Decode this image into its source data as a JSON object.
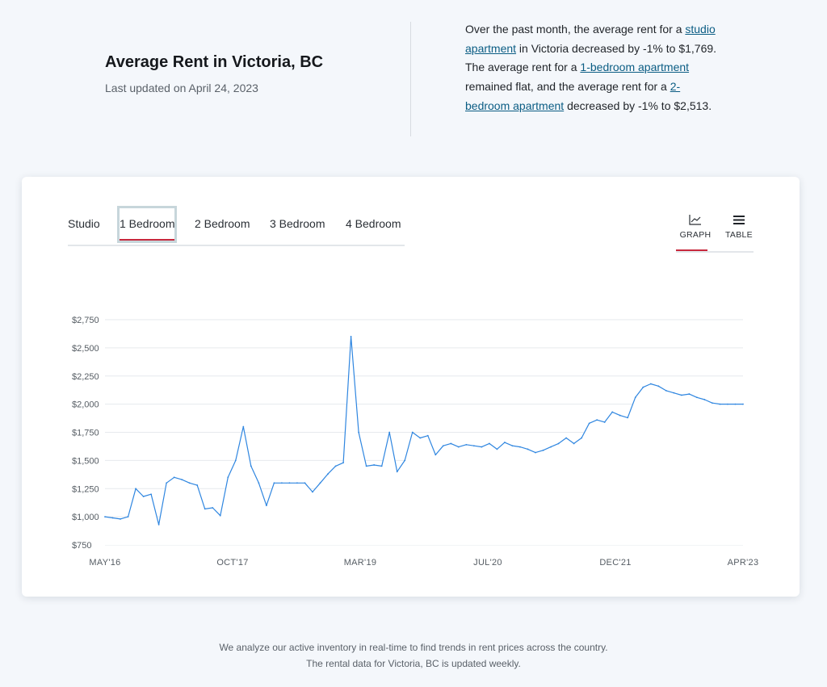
{
  "header": {
    "title": "Average Rent in Victoria, BC",
    "updated": "Last updated on April 24, 2023"
  },
  "summary": {
    "t1": "Over the past month, the average rent for a ",
    "link1": "studio apartment",
    "t2": " in Victoria decreased by -1% to $1,769. The average rent for a ",
    "link2": "1-bedroom apartment",
    "t3": " remained flat, and the average rent for a ",
    "link3": "2-bedroom apartment",
    "t4": " decreased by -1% to $2,513."
  },
  "tabs": [
    "Studio",
    "1 Bedroom",
    "2 Bedroom",
    "3 Bedroom",
    "4 Bedroom"
  ],
  "active_tab": "1 Bedroom",
  "views": {
    "graph": "GRAPH",
    "table": "TABLE",
    "active": "graph"
  },
  "colors": {
    "line": "#2f86e0",
    "accent": "#c8283d",
    "grid": "#e6e9ed"
  },
  "footer": "We analyze our active inventory in real-time to find trends in rent prices across the country. The rental data for Victoria, BC is updated weekly.",
  "chart_data": {
    "type": "area",
    "title": "",
    "xlabel": "",
    "ylabel": "",
    "x_tick_labels": [
      "MAY'16",
      "OCT'17",
      "MAR'19",
      "JUL'20",
      "DEC'21",
      "APR'23"
    ],
    "y_tick_labels": [
      "$750",
      "$1,000",
      "$1,250",
      "$1,500",
      "$1,750",
      "$2,000",
      "$2,250",
      "$2,500",
      "$2,750"
    ],
    "ylim": [
      750,
      2750
    ],
    "xlim": [
      "2016-05",
      "2023-04"
    ],
    "grid": "horizontal",
    "series": [
      {
        "values": [
          [
            "2016-05",
            1000
          ],
          [
            "2016-06",
            990
          ],
          [
            "2016-07",
            980
          ],
          [
            "2016-08",
            1000
          ],
          [
            "2016-09",
            1250
          ],
          [
            "2016-10",
            1180
          ],
          [
            "2016-11",
            1200
          ],
          [
            "2016-12",
            930
          ],
          [
            "2017-01",
            1300
          ],
          [
            "2017-02",
            1350
          ],
          [
            "2017-03",
            1330
          ],
          [
            "2017-04",
            1300
          ],
          [
            "2017-05",
            1280
          ],
          [
            "2017-06",
            1070
          ],
          [
            "2017-07",
            1080
          ],
          [
            "2017-08",
            1010
          ],
          [
            "2017-09",
            1350
          ],
          [
            "2017-10",
            1500
          ],
          [
            "2017-11",
            1800
          ],
          [
            "2017-12",
            1450
          ],
          [
            "2018-01",
            1300
          ],
          [
            "2018-02",
            1100
          ],
          [
            "2018-03",
            1300
          ],
          [
            "2018-04",
            1300
          ],
          [
            "2018-05",
            1300
          ],
          [
            "2018-06",
            1300
          ],
          [
            "2018-07",
            1300
          ],
          [
            "2018-08",
            1220
          ],
          [
            "2018-09",
            1300
          ],
          [
            "2018-10",
            1380
          ],
          [
            "2018-11",
            1450
          ],
          [
            "2018-12",
            1480
          ],
          [
            "2019-01",
            2600
          ],
          [
            "2019-02",
            1750
          ],
          [
            "2019-03",
            1450
          ],
          [
            "2019-04",
            1460
          ],
          [
            "2019-05",
            1450
          ],
          [
            "2019-06",
            1750
          ],
          [
            "2019-07",
            1400
          ],
          [
            "2019-08",
            1500
          ],
          [
            "2019-09",
            1750
          ],
          [
            "2019-10",
            1700
          ],
          [
            "2019-11",
            1720
          ],
          [
            "2019-12",
            1550
          ],
          [
            "2020-01",
            1630
          ],
          [
            "2020-02",
            1650
          ],
          [
            "2020-03",
            1620
          ],
          [
            "2020-04",
            1640
          ],
          [
            "2020-05",
            1630
          ],
          [
            "2020-06",
            1620
          ],
          [
            "2020-07",
            1650
          ],
          [
            "2020-08",
            1600
          ],
          [
            "2020-09",
            1660
          ],
          [
            "2020-10",
            1630
          ],
          [
            "2020-11",
            1620
          ],
          [
            "2020-12",
            1600
          ],
          [
            "2021-01",
            1570
          ],
          [
            "2021-02",
            1590
          ],
          [
            "2021-03",
            1620
          ],
          [
            "2021-04",
            1650
          ],
          [
            "2021-05",
            1700
          ],
          [
            "2021-06",
            1650
          ],
          [
            "2021-07",
            1700
          ],
          [
            "2021-08",
            1830
          ],
          [
            "2021-09",
            1860
          ],
          [
            "2021-10",
            1840
          ],
          [
            "2021-11",
            1930
          ],
          [
            "2021-12",
            1900
          ],
          [
            "2022-01",
            1880
          ],
          [
            "2022-02",
            2060
          ],
          [
            "2022-03",
            2150
          ],
          [
            "2022-04",
            2180
          ],
          [
            "2022-05",
            2160
          ],
          [
            "2022-06",
            2120
          ],
          [
            "2022-07",
            2100
          ],
          [
            "2022-08",
            2080
          ],
          [
            "2022-09",
            2090
          ],
          [
            "2022-10",
            2060
          ],
          [
            "2022-11",
            2040
          ],
          [
            "2022-12",
            2010
          ],
          [
            "2023-01",
            2000
          ],
          [
            "2023-02",
            2000
          ],
          [
            "2023-03",
            2000
          ],
          [
            "2023-04",
            2000
          ]
        ]
      }
    ]
  }
}
